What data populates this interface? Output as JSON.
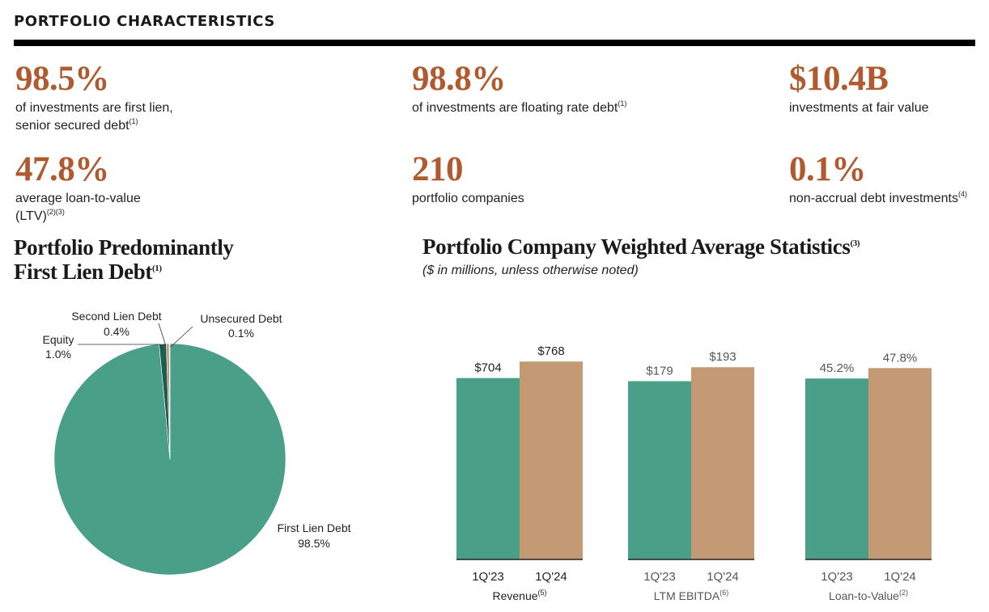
{
  "colors": {
    "accent": "#b05a2f",
    "teal": "#4a9f89",
    "tan": "#c39a74",
    "dark_teal": "#1f5d52",
    "light_tan": "#d9c4a5"
  },
  "header": {
    "title": "PORTFOLIO CHARACTERISTICS"
  },
  "stats": [
    {
      "value": "98.5%",
      "lines": [
        "of investments are first lien,",
        "senior secured debt"
      ],
      "note": "(1)"
    },
    {
      "value": "98.8%",
      "lines": [
        "of investments are floating rate debt"
      ],
      "note": "(1)"
    },
    {
      "value": "$10.4B",
      "lines": [
        "investments at fair value"
      ],
      "note": ""
    },
    {
      "value": "47.8%",
      "lines": [
        "average loan-to-value",
        "(LTV)"
      ],
      "note": "(2)(3)"
    },
    {
      "value": "210",
      "lines": [
        "portfolio companies"
      ],
      "note": ""
    },
    {
      "value": "0.1%",
      "lines": [
        "non-accrual debt investments"
      ],
      "note": "(4)"
    }
  ],
  "pie_section": {
    "title_line1": "Portfolio Predominantly",
    "title_line2": "First Lien Debt",
    "title_note": "(1)"
  },
  "bar_section": {
    "title": "Portfolio Company Weighted Average Statistics",
    "title_note": "(3)",
    "subtitle": "($ in millions, unless otherwise noted)"
  },
  "chart_data": [
    {
      "type": "pie",
      "title": "Portfolio Predominantly First Lien Debt",
      "slices": [
        {
          "label": "First Lien Debt",
          "value": 98.5,
          "display": "98.5%",
          "color": "#4a9f89"
        },
        {
          "label": "Equity",
          "value": 1.0,
          "display": "1.0%",
          "color": "#1f5d52"
        },
        {
          "label": "Second Lien Debt",
          "value": 0.4,
          "display": "0.4%",
          "color": "#c39a74"
        },
        {
          "label": "Unsecured Debt",
          "value": 0.1,
          "display": "0.1%",
          "color": "#d9c4a5"
        }
      ]
    },
    {
      "type": "bar",
      "title": "Portfolio Company Weighted Average Statistics",
      "groups": [
        {
          "label": "Revenue",
          "note": "(5)",
          "categories": [
            "1Q'23",
            "1Q'24"
          ],
          "values": [
            704,
            768
          ],
          "labels": [
            "$704",
            "$768"
          ],
          "ylim": [
            0,
            800
          ]
        },
        {
          "label": "LTM EBITDA",
          "note": "(6)",
          "categories": [
            "1Q'23",
            "1Q'24"
          ],
          "values": [
            179,
            193
          ],
          "labels": [
            "$179",
            "$193"
          ],
          "ylim": [
            0,
            207
          ]
        },
        {
          "label": "Loan-to-Value",
          "note": "(2)",
          "categories": [
            "1Q'23",
            "1Q'24"
          ],
          "values": [
            45.2,
            47.8
          ],
          "labels": [
            "45.2%",
            "47.8%"
          ],
          "ylim": [
            0,
            51.5
          ]
        }
      ],
      "series_colors": [
        "#4a9f89",
        "#c39a74"
      ]
    }
  ]
}
